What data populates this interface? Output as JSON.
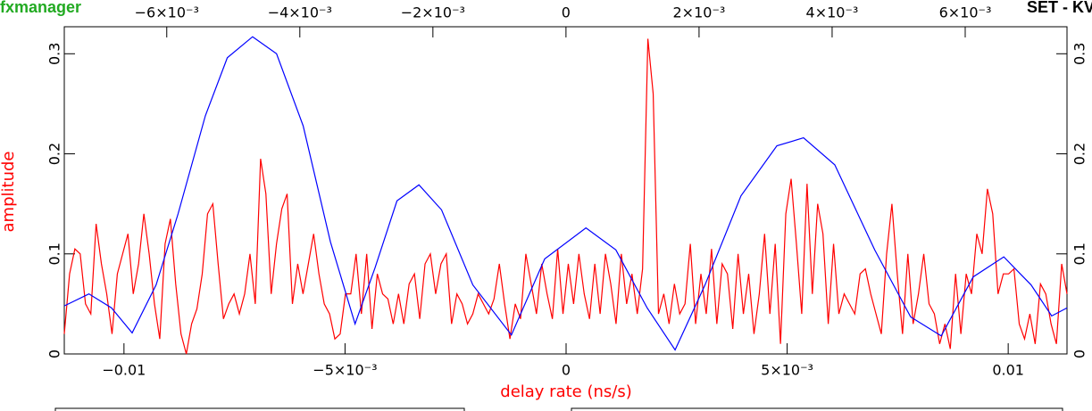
{
  "header": {
    "left": "fxmanager",
    "right": "SET - KVNTS"
  },
  "chart_data": {
    "type": "line",
    "y_label": "amplitude",
    "x_label": "delay rate (ns/s)",
    "xlim": [
      -0.01135,
      0.01133
    ],
    "xticks": [
      {
        "value": -0.01,
        "label": "−0.01"
      },
      {
        "value": -0.005,
        "label": "−5×10⁻³"
      },
      0,
      {
        "value": 0.005,
        "label": "5×10⁻³"
      },
      0.01
    ],
    "x2lim": [
      -0.00754,
      0.00753
    ],
    "x2ticks": [
      {
        "value": -0.006,
        "label": "−6×10⁻³"
      },
      {
        "value": -0.004,
        "label": "−4×10⁻³"
      },
      {
        "value": -0.002,
        "label": "−2×10⁻³"
      },
      0,
      {
        "value": 0.002,
        "label": "2×10⁻³"
      },
      {
        "value": 0.004,
        "label": "4×10⁻³"
      },
      {
        "value": 0.006,
        "label": "6×10⁻³"
      }
    ],
    "ylim": [
      0,
      0.327
    ],
    "yticks": [
      0,
      0.1,
      0.2,
      0.3
    ],
    "series": [
      {
        "color": "#ff0000",
        "x": [
          -0.01135,
          -0.01123,
          -0.01111,
          -0.01099,
          -0.01087,
          -0.01075,
          -0.01063,
          -0.01051,
          -0.01039,
          -0.01027,
          -0.01015,
          -0.01003,
          -0.00991,
          -0.00979,
          -0.00967,
          -0.00955,
          -0.00943,
          -0.00931,
          -0.00919,
          -0.00907,
          -0.00895,
          -0.00883,
          -0.00871,
          -0.00859,
          -0.00847,
          -0.00835,
          -0.00823,
          -0.00811,
          -0.00799,
          -0.00787,
          -0.00775,
          -0.00763,
          -0.00751,
          -0.00739,
          -0.00727,
          -0.00715,
          -0.00703,
          -0.00691,
          -0.00679,
          -0.00667,
          -0.00655,
          -0.00643,
          -0.00631,
          -0.00619,
          -0.00607,
          -0.00595,
          -0.00583,
          -0.00571,
          -0.00559,
          -0.00547,
          -0.00535,
          -0.00523,
          -0.00511,
          -0.00499,
          -0.00487,
          -0.00475,
          -0.00463,
          -0.00451,
          -0.00439,
          -0.00427,
          -0.00415,
          -0.00403,
          -0.00391,
          -0.00379,
          -0.00367,
          -0.00355,
          -0.00343,
          -0.00331,
          -0.00319,
          -0.00307,
          -0.00295,
          -0.00283,
          -0.00271,
          -0.00259,
          -0.00247,
          -0.00235,
          -0.00223,
          -0.00211,
          -0.00199,
          -0.00187,
          -0.00175,
          -0.00163,
          -0.00151,
          -0.00139,
          -0.00127,
          -0.00115,
          -0.00103,
          -0.00091,
          -0.00079,
          -0.00067,
          -0.00055,
          -0.00043,
          -0.00031,
          -0.00019,
          -7e-05,
          5e-05,
          0.00017,
          0.00029,
          0.00041,
          0.00053,
          0.00065,
          0.00077,
          0.00089,
          0.00101,
          0.00113,
          0.00125,
          0.00137,
          0.00149,
          0.00161,
          0.00173,
          0.00185,
          0.00197,
          0.00209,
          0.00221,
          0.00233,
          0.00245,
          0.00257,
          0.00269,
          0.00281,
          0.00293,
          0.00305,
          0.00317,
          0.00329,
          0.00341,
          0.00353,
          0.00365,
          0.00377,
          0.00389,
          0.00401,
          0.00413,
          0.00425,
          0.00437,
          0.00449,
          0.00461,
          0.00473,
          0.00485,
          0.00497,
          0.00509,
          0.00521,
          0.00533,
          0.00545,
          0.00557,
          0.00569,
          0.00581,
          0.00593,
          0.00605,
          0.00617,
          0.00629,
          0.00641,
          0.00653,
          0.00665,
          0.00677,
          0.00689,
          0.00701,
          0.00713,
          0.00725,
          0.00737,
          0.00749,
          0.00761,
          0.00773,
          0.00785,
          0.00797,
          0.00809,
          0.00821,
          0.00833,
          0.00845,
          0.00857,
          0.00869,
          0.00881,
          0.00893,
          0.00905,
          0.00917,
          0.00929,
          0.00941,
          0.00953,
          0.00965,
          0.00977,
          0.00989,
          0.01001,
          0.01013,
          0.01025,
          0.01037,
          0.01049,
          0.01061,
          0.01073,
          0.01085,
          0.01097,
          0.01109,
          0.01121,
          0.01133
        ],
        "values": [
          0.02,
          0.08,
          0.105,
          0.1,
          0.05,
          0.04,
          0.13,
          0.09,
          0.06,
          0.02,
          0.08,
          0.1,
          0.12,
          0.06,
          0.09,
          0.14,
          0.1,
          0.05,
          0.015,
          0.11,
          0.135,
          0.07,
          0.02,
          0.0,
          0.03,
          0.045,
          0.08,
          0.14,
          0.15,
          0.09,
          0.035,
          0.05,
          0.06,
          0.04,
          0.06,
          0.1,
          0.05,
          0.195,
          0.16,
          0.06,
          0.11,
          0.145,
          0.16,
          0.05,
          0.09,
          0.06,
          0.09,
          0.12,
          0.08,
          0.05,
          0.04,
          0.015,
          0.02,
          0.06,
          0.06,
          0.1,
          0.04,
          0.1,
          0.025,
          0.08,
          0.06,
          0.055,
          0.03,
          0.06,
          0.03,
          0.07,
          0.08,
          0.035,
          0.09,
          0.1,
          0.06,
          0.09,
          0.1,
          0.03,
          0.06,
          0.05,
          0.03,
          0.04,
          0.06,
          0.05,
          0.04,
          0.055,
          0.09,
          0.05,
          0.015,
          0.05,
          0.035,
          0.1,
          0.07,
          0.04,
          0.09,
          0.06,
          0.035,
          0.105,
          0.04,
          0.09,
          0.05,
          0.1,
          0.06,
          0.035,
          0.09,
          0.04,
          0.1,
          0.07,
          0.03,
          0.1,
          0.05,
          0.08,
          0.04,
          0.085,
          0.315,
          0.26,
          0.04,
          0.06,
          0.03,
          0.07,
          0.04,
          0.05,
          0.11,
          0.03,
          0.08,
          0.04,
          0.105,
          0.03,
          0.09,
          0.08,
          0.025,
          0.1,
          0.04,
          0.08,
          0.02,
          0.06,
          0.12,
          0.04,
          0.11,
          0.01,
          0.14,
          0.175,
          0.11,
          0.04,
          0.17,
          0.06,
          0.15,
          0.12,
          0.03,
          0.11,
          0.04,
          0.06,
          0.05,
          0.04,
          0.08,
          0.085,
          0.06,
          0.04,
          0.02,
          0.1,
          0.15,
          0.08,
          0.02,
          0.1,
          0.03,
          0.06,
          0.1,
          0.05,
          0.04,
          0.01,
          0.03,
          0.005,
          0.08,
          0.02,
          0.08,
          0.06,
          0.12,
          0.1,
          0.165,
          0.14,
          0.06,
          0.08,
          0.08,
          0.085,
          0.03,
          0.015,
          0.04,
          0.01,
          0.07,
          0.06,
          0.03,
          0.01,
          0.09,
          0.06
        ]
      },
      {
        "color": "#0000ff",
        "axis": "x2",
        "x": [
          -0.00754,
          -0.00717,
          -0.00683,
          -0.00652,
          -0.00616,
          -0.00583,
          -0.00542,
          -0.00509,
          -0.00471,
          -0.00435,
          -0.00395,
          -0.00354,
          -0.00317,
          -0.00287,
          -0.00254,
          -0.00221,
          -0.00187,
          -0.0014,
          -0.00082,
          -0.00032,
          0.0003,
          0.00075,
          0.00122,
          0.00164,
          0.00209,
          0.00263,
          0.00317,
          0.00357,
          0.00404,
          0.00464,
          0.00518,
          0.00564,
          0.00612,
          0.00658,
          0.00699,
          0.0073,
          0.00753
        ],
        "values": [
          0.048,
          0.06,
          0.046,
          0.021,
          0.069,
          0.14,
          0.238,
          0.296,
          0.317,
          0.3,
          0.228,
          0.112,
          0.03,
          0.086,
          0.153,
          0.169,
          0.144,
          0.069,
          0.019,
          0.095,
          0.126,
          0.104,
          0.046,
          0.004,
          0.069,
          0.158,
          0.208,
          0.216,
          0.189,
          0.104,
          0.037,
          0.018,
          0.077,
          0.097,
          0.069,
          0.038,
          0.046
        ]
      }
    ]
  }
}
